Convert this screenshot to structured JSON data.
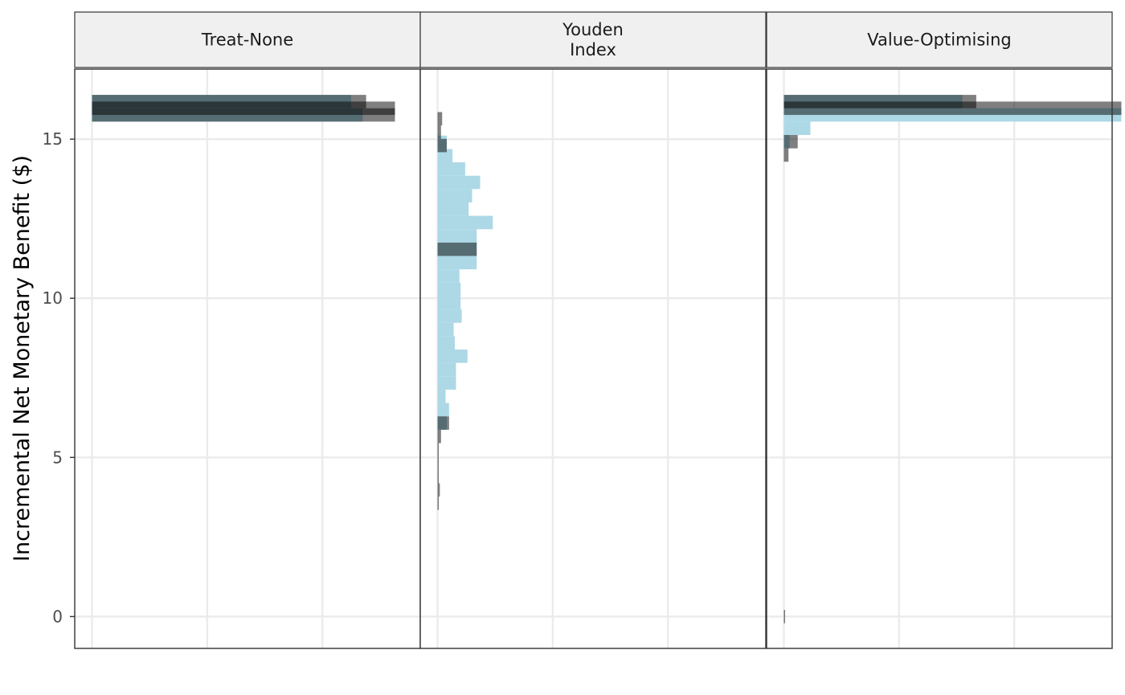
{
  "chart_data": {
    "type": "bar",
    "orientation": "horizontal",
    "ylabel": "Incremental Net Monetary Benefit ($)",
    "xlabel": "",
    "ylim": [
      -1.0,
      17.2
    ],
    "yticks": [
      0,
      5,
      10,
      15
    ],
    "ytick_labels": [
      "0",
      "5",
      "10",
      "15"
    ],
    "xlim": [
      -0.15,
      2.85
    ],
    "xgrid": [
      0,
      1,
      2,
      3
    ],
    "bin_width": 0.42,
    "colors": {
      "series_a": "#add8e6",
      "series_b": "#000000",
      "series_b_opacity": 0.5
    },
    "panels": [
      {
        "strip_label": "Treat-None",
        "strip_lines": [
          "Treat-None"
        ],
        "bars_a": [
          {
            "y": 16.18,
            "value": 2.25
          },
          {
            "y": 15.76,
            "value": 2.35
          }
        ],
        "bars_b": [
          {
            "y": 16.18,
            "value": 2.38
          },
          {
            "y": 15.97,
            "value": 2.63
          },
          {
            "y": 15.76,
            "value": 2.63
          }
        ]
      },
      {
        "strip_label": "Youden Index",
        "strip_lines": [
          "Youden",
          "Index"
        ],
        "bars_a": [
          {
            "y": 14.9,
            "value": 0.08
          },
          {
            "y": 14.48,
            "value": 0.13
          },
          {
            "y": 14.06,
            "value": 0.24
          },
          {
            "y": 13.64,
            "value": 0.37
          },
          {
            "y": 13.22,
            "value": 0.3
          },
          {
            "y": 12.8,
            "value": 0.27
          },
          {
            "y": 12.38,
            "value": 0.48
          },
          {
            "y": 11.96,
            "value": 0.34
          },
          {
            "y": 11.54,
            "value": 0.34
          },
          {
            "y": 11.12,
            "value": 0.34
          },
          {
            "y": 10.7,
            "value": 0.19
          },
          {
            "y": 10.28,
            "value": 0.2
          },
          {
            "y": 9.86,
            "value": 0.2
          },
          {
            "y": 9.44,
            "value": 0.21
          },
          {
            "y": 9.02,
            "value": 0.14
          },
          {
            "y": 8.6,
            "value": 0.15
          },
          {
            "y": 8.18,
            "value": 0.26
          },
          {
            "y": 7.76,
            "value": 0.16
          },
          {
            "y": 7.34,
            "value": 0.16
          },
          {
            "y": 6.92,
            "value": 0.07
          },
          {
            "y": 6.5,
            "value": 0.1
          },
          {
            "y": 6.08,
            "value": 0.08
          }
        ],
        "bars_b": [
          {
            "y": 15.64,
            "value": 0.04
          },
          {
            "y": 15.22,
            "value": 0.03
          },
          {
            "y": 14.8,
            "value": 0.08
          },
          {
            "y": 11.54,
            "value": 0.34
          },
          {
            "y": 6.08,
            "value": 0.1
          },
          {
            "y": 5.66,
            "value": 0.03
          },
          {
            "y": 5.24,
            "value": 0.01
          },
          {
            "y": 4.82,
            "value": 0.01
          },
          {
            "y": 4.4,
            "value": 0.01
          },
          {
            "y": 3.98,
            "value": 0.02
          },
          {
            "y": 3.56,
            "value": 0.01
          }
        ]
      },
      {
        "strip_label": "Value-Optimising",
        "strip_lines": [
          "Value-Optimising"
        ],
        "bars_a": [
          {
            "y": 16.18,
            "value": 1.55
          },
          {
            "y": 15.76,
            "value": 2.93
          },
          {
            "y": 15.34,
            "value": 0.23
          },
          {
            "y": 14.92,
            "value": 0.05
          }
        ],
        "bars_b": [
          {
            "y": 16.18,
            "value": 1.67
          },
          {
            "y": 15.97,
            "value": 2.93
          },
          {
            "y": 14.92,
            "value": 0.12
          },
          {
            "y": 14.5,
            "value": 0.04
          },
          {
            "y": 0.0,
            "value": 0.01
          }
        ]
      }
    ]
  }
}
